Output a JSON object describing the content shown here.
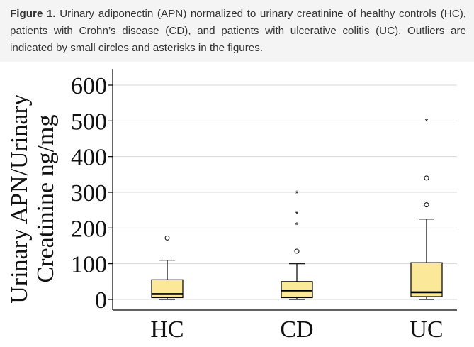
{
  "caption": {
    "label": "Figure 1.",
    "text": " Urinary adiponectin (APN) normalized to urinary creatinine of healthy controls (HC), patients with Crohn’s disease (CD), and patients with ulcerative colitis (UC). Outliers are indicated by small circles and asterisks in the figures."
  },
  "chart_data": {
    "type": "boxplot",
    "title": "",
    "ylabel_lines": [
      "Urinary APN/Urinary",
      "Creatinine ng/mg"
    ],
    "xlabel": "",
    "ylim": [
      0,
      600
    ],
    "yticks": [
      "0",
      "100",
      "200",
      "300",
      "400",
      "500",
      "600"
    ],
    "ytick_values": [
      0,
      100,
      200,
      300,
      400,
      500,
      600
    ],
    "categories": [
      "HC",
      "CD",
      "UC"
    ],
    "grid": false,
    "box_color": "#fbe898",
    "boxes": [
      {
        "name": "HC",
        "whisker_low": 0,
        "q1": 5,
        "median": 15,
        "q3": 55,
        "whisker_high": 110,
        "outliers_circle": [
          172
        ],
        "outliers_star": []
      },
      {
        "name": "CD",
        "whisker_low": 0,
        "q1": 5,
        "median": 25,
        "q3": 50,
        "whisker_high": 100,
        "outliers_circle": [
          135
        ],
        "outliers_star": [
          210,
          240,
          298
        ]
      },
      {
        "name": "UC",
        "whisker_low": 0,
        "q1": 8,
        "median": 20,
        "q3": 103,
        "whisker_high": 225,
        "outliers_circle": [
          265,
          340
        ],
        "outliers_star": [
          500
        ]
      }
    ]
  }
}
